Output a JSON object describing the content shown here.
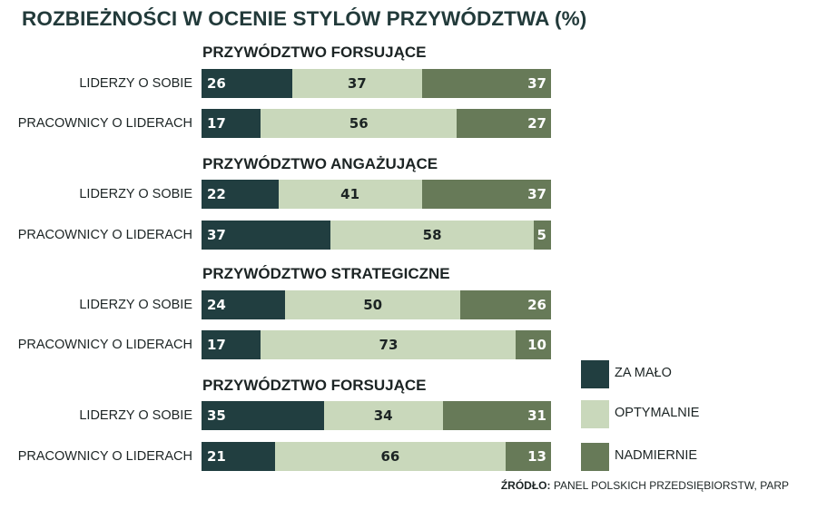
{
  "title": "ROZBIEŻNOŚCI W OCENIE STYLÓW PRZYWÓDZTWA (%)",
  "colors": {
    "za_malo": "#213e40",
    "optymalnie": "#c9d8bb",
    "nadmiernie": "#677a58"
  },
  "legend": [
    {
      "label": "ZA MAŁO",
      "color": "#213e40"
    },
    {
      "label": "OPTYMALNIE",
      "color": "#c9d8bb"
    },
    {
      "label": "NADMIERNIE",
      "color": "#677a58"
    }
  ],
  "source": {
    "prefix": "ŹRÓDŁO:",
    "text": "PANEL POLSKICH PRZEDSIĘBIORSTW, PARP"
  },
  "groups": [
    {
      "title": "PRZYWÓDZTWO FORSUJĄCE",
      "rows": [
        {
          "label": "LIDERZY O SOBIE",
          "za_malo": "26",
          "optymalnie": "37",
          "nadmiernie": "37"
        },
        {
          "label": "PRACOWNICY O LIDERACH",
          "za_malo": "17",
          "optymalnie": "56",
          "nadmiernie": "27"
        }
      ]
    },
    {
      "title": "PRZYWÓDZTWO ANGAŻUJĄCE",
      "rows": [
        {
          "label": "LIDERZY O SOBIE",
          "za_malo": "22",
          "optymalnie": "41",
          "nadmiernie": "37"
        },
        {
          "label": "PRACOWNICY O LIDERACH",
          "za_malo": "37",
          "optymalnie": "58",
          "nadmiernie": "5"
        }
      ]
    },
    {
      "title": "PRZYWÓDZTWO STRATEGICZNE",
      "rows": [
        {
          "label": "LIDERZY O SOBIE",
          "za_malo": "24",
          "optymalnie": "50",
          "nadmiernie": "26"
        },
        {
          "label": "PRACOWNICY O LIDERACH",
          "za_malo": "17",
          "optymalnie": "73",
          "nadmiernie": "10"
        }
      ]
    },
    {
      "title": "PRZYWÓDZTWO FORSUJĄCE",
      "rows": [
        {
          "label": "LIDERZY O SOBIE",
          "za_malo": "35",
          "optymalnie": "34",
          "nadmiernie": "31"
        },
        {
          "label": "PRACOWNICY O LIDERACH",
          "za_malo": "21",
          "optymalnie": "66",
          "nadmiernie": "13"
        }
      ]
    }
  ],
  "chart_data": {
    "type": "bar",
    "orientation": "horizontal",
    "stacked": true,
    "normalized_percent": true,
    "title": "ROZBIEŻNOŚCI W OCENIE STYLÓW PRZYWÓDZTWA (%)",
    "xlabel": "",
    "ylabel": "",
    "xlim": [
      0,
      100
    ],
    "grid": false,
    "legend_position": "right-bottom",
    "categories": [
      "PRZYWÓDZTWO FORSUJĄCE — LIDERZY O SOBIE",
      "PRZYWÓDZTWO FORSUJĄCE — PRACOWNICY O LIDERACH",
      "PRZYWÓDZTWO ANGAŻUJĄCE — LIDERZY O SOBIE",
      "PRZYWÓDZTWO ANGAŻUJĄCE — PRACOWNICY O LIDERACH",
      "PRZYWÓDZTWO STRATEGICZNE — LIDERZY O SOBIE",
      "PRZYWÓDZTWO STRATEGICZNE — PRACOWNICY O LIDERACH",
      "PRZYWÓDZTWO FORSUJĄCE — LIDERZY O SOBIE",
      "PRZYWÓDZTWO FORSUJĄCE — PRACOWNICY O LIDERACH"
    ],
    "series": [
      {
        "name": "ZA MAŁO",
        "color": "#213e40",
        "values": [
          26,
          17,
          22,
          37,
          24,
          17,
          35,
          21
        ]
      },
      {
        "name": "OPTYMALNIE",
        "color": "#c9d8bb",
        "values": [
          37,
          56,
          41,
          58,
          50,
          73,
          34,
          66
        ]
      },
      {
        "name": "NADMIERNIE",
        "color": "#677a58",
        "values": [
          37,
          27,
          37,
          5,
          26,
          10,
          31,
          13
        ]
      }
    ],
    "annotations": [
      "ŹRÓDŁO: PANEL POLSKICH PRZEDSIĘBIORSTW, PARP"
    ]
  }
}
